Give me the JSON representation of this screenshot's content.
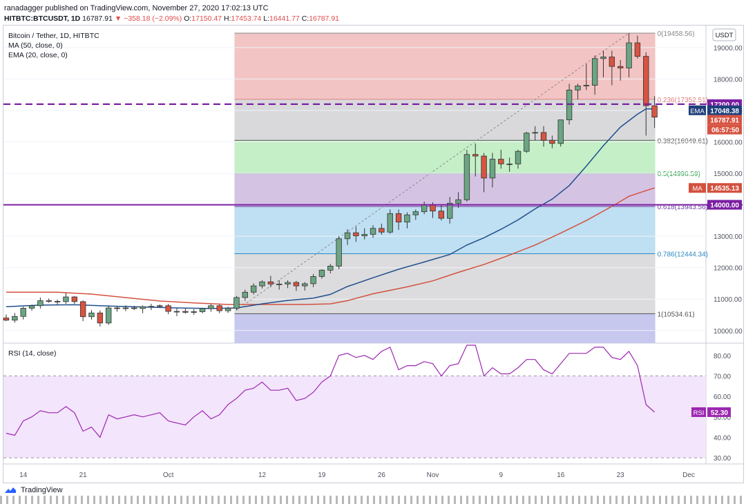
{
  "header": {
    "publish_line": "ranadagger published on TradingView.com, November 27, 2020 17:02:13 UTC",
    "symbol": "HITBTC:BTCUSDT, 1D",
    "price": "16787.91",
    "change": "▼ −358.18 (−2.09%)",
    "o_label": "O:",
    "o_value": "17150.47",
    "h_label": "H:",
    "h_value": "17453.74",
    "l_label": "L:",
    "l_value": "16441.77",
    "c_label": "C:",
    "c_value": "16787.91"
  },
  "legend": {
    "title": "Bitcoin / Tether, 1D, HITBTC",
    "ma": "MA (50, close, 0)",
    "ema": "EMA (20, close, 0)",
    "rsi": "RSI (14, close)"
  },
  "currency_button": "USDT",
  "footer_brand": "TradingView",
  "colors": {
    "up": "#6ba583",
    "down": "#d75442",
    "ema": "#1f4e8c",
    "ma": "#d3513f",
    "rsi": "#9c27b0",
    "level": "#7b1fa2",
    "accent_label": "#1e3f7a"
  },
  "chart_data": {
    "type": "candlestick",
    "title": "Bitcoin / Tether, 1D, HITBTC",
    "ylim": [
      9600,
      19700
    ],
    "y_ticks": [
      10000,
      11000,
      12000,
      13000,
      14000,
      15000,
      16000,
      17000,
      18000,
      19000
    ],
    "y_tick_labels": [
      "10000.00",
      "11000.00",
      "12000.00",
      "13000.00",
      "14000.00",
      "15000.00",
      "16000.00",
      "17000.00",
      "18000.00",
      "19000.00"
    ],
    "x_ticks": [
      {
        "label": "14",
        "index": 2
      },
      {
        "label": "21",
        "index": 9
      },
      {
        "label": "Oct",
        "index": 19
      },
      {
        "label": "12",
        "index": 30
      },
      {
        "label": "19",
        "index": 37
      },
      {
        "label": "26",
        "index": 44
      },
      {
        "label": "Nov",
        "index": 50
      },
      {
        "label": "9",
        "index": 58
      },
      {
        "label": "16",
        "index": 65
      },
      {
        "label": "23",
        "index": 72
      },
      {
        "label": "Dec",
        "index": 80
      }
    ],
    "candles": [
      [
        10400,
        10510,
        10300,
        10330
      ],
      [
        10330,
        10560,
        10250,
        10450
      ],
      [
        10450,
        10760,
        10350,
        10710
      ],
      [
        10710,
        10820,
        10630,
        10790
      ],
      [
        10790,
        11050,
        10700,
        10950
      ],
      [
        10950,
        11020,
        10880,
        10930
      ],
      [
        10930,
        10980,
        10820,
        10920
      ],
      [
        10920,
        11200,
        10850,
        11070
      ],
      [
        11070,
        11100,
        10850,
        10920
      ],
      [
        10920,
        10960,
        10300,
        10440
      ],
      [
        10440,
        10650,
        10350,
        10560
      ],
      [
        10560,
        10640,
        10130,
        10240
      ],
      [
        10240,
        10800,
        10180,
        10720
      ],
      [
        10720,
        10780,
        10600,
        10700
      ],
      [
        10700,
        10800,
        10620,
        10720
      ],
      [
        10720,
        10780,
        10650,
        10700
      ],
      [
        10700,
        10800,
        10550,
        10760
      ],
      [
        10760,
        10850,
        10650,
        10770
      ],
      [
        10770,
        10830,
        10720,
        10790
      ],
      [
        10790,
        10850,
        10520,
        10610
      ],
      [
        10610,
        10710,
        10460,
        10610
      ],
      [
        10610,
        10700,
        10540,
        10580
      ],
      [
        10580,
        10680,
        10500,
        10600
      ],
      [
        10600,
        10720,
        10550,
        10700
      ],
      [
        10700,
        10840,
        10600,
        10790
      ],
      [
        10790,
        10830,
        10550,
        10630
      ],
      [
        10630,
        10760,
        10560,
        10710
      ],
      [
        10710,
        11100,
        10650,
        11050
      ],
      [
        11050,
        11300,
        10950,
        11220
      ],
      [
        11220,
        11500,
        11150,
        11420
      ],
      [
        11420,
        11600,
        11340,
        11550
      ],
      [
        11550,
        11740,
        11380,
        11480
      ],
      [
        11480,
        11600,
        11300,
        11480
      ],
      [
        11480,
        11600,
        11350,
        11530
      ],
      [
        11530,
        11580,
        11260,
        11420
      ],
      [
        11420,
        11540,
        11270,
        11490
      ],
      [
        11490,
        11800,
        11380,
        11720
      ],
      [
        11720,
        11950,
        11650,
        11920
      ],
      [
        11920,
        12120,
        11820,
        12050
      ],
      [
        12050,
        13000,
        11950,
        12920
      ],
      [
        12920,
        13220,
        12720,
        13110
      ],
      [
        13110,
        13300,
        12820,
        13010
      ],
      [
        13010,
        13250,
        12900,
        13060
      ],
      [
        13060,
        13350,
        12950,
        13250
      ],
      [
        13250,
        13400,
        13050,
        13130
      ],
      [
        13130,
        13850,
        13080,
        13720
      ],
      [
        13720,
        13850,
        13200,
        13450
      ],
      [
        13450,
        13760,
        13250,
        13680
      ],
      [
        13680,
        13850,
        13520,
        13780
      ],
      [
        13780,
        14100,
        13700,
        14000
      ],
      [
        14000,
        14080,
        13580,
        13800
      ],
      [
        13800,
        14000,
        13500,
        13570
      ],
      [
        13570,
        14250,
        13400,
        14050
      ],
      [
        14050,
        14400,
        13900,
        14160
      ],
      [
        14160,
        15750,
        14100,
        15600
      ],
      [
        15600,
        15950,
        14900,
        15550
      ],
      [
        15550,
        15650,
        14400,
        14850
      ],
      [
        14850,
        15650,
        14550,
        15450
      ],
      [
        15450,
        15750,
        15150,
        15300
      ],
      [
        15300,
        15500,
        15050,
        15300
      ],
      [
        15300,
        15750,
        15150,
        15700
      ],
      [
        15700,
        16320,
        15650,
        16280
      ],
      [
        16280,
        16500,
        16050,
        16300
      ],
      [
        16300,
        16500,
        15850,
        16050
      ],
      [
        16050,
        16200,
        15800,
        15950
      ],
      [
        15950,
        16650,
        15850,
        16700
      ],
      [
        16700,
        17850,
        16550,
        17650
      ],
      [
        17650,
        17850,
        17350,
        17780
      ],
      [
        17780,
        18470,
        17650,
        17800
      ],
      [
        17800,
        18750,
        17500,
        18650
      ],
      [
        18650,
        18900,
        18050,
        18700
      ],
      [
        18700,
        18900,
        17800,
        18400
      ],
      [
        18400,
        18600,
        17950,
        18350
      ],
      [
        18350,
        19459,
        18050,
        19150
      ],
      [
        19150,
        19380,
        18650,
        18720
      ],
      [
        18720,
        18850,
        16200,
        17150
      ],
      [
        17150,
        17453.74,
        16441.77,
        16787.91
      ]
    ],
    "ema20": [
      [
        0,
        10760
      ],
      [
        4,
        10810
      ],
      [
        8,
        10820
      ],
      [
        12,
        10780
      ],
      [
        16,
        10750
      ],
      [
        20,
        10720
      ],
      [
        24,
        10700
      ],
      [
        27,
        10720
      ],
      [
        30,
        10850
      ],
      [
        33,
        10960
      ],
      [
        36,
        11030
      ],
      [
        38,
        11150
      ],
      [
        40,
        11400
      ],
      [
        43,
        11680
      ],
      [
        46,
        11950
      ],
      [
        49,
        12180
      ],
      [
        52,
        12420
      ],
      [
        54,
        12720
      ],
      [
        56,
        12950
      ],
      [
        58,
        13220
      ],
      [
        60,
        13520
      ],
      [
        62,
        13870
      ],
      [
        64,
        14180
      ],
      [
        66,
        14610
      ],
      [
        68,
        15230
      ],
      [
        70,
        15880
      ],
      [
        72,
        16470
      ],
      [
        74,
        16880
      ],
      [
        75,
        17050
      ],
      [
        76,
        17048.38
      ]
    ],
    "ma50": [
      [
        0,
        11220
      ],
      [
        6,
        11220
      ],
      [
        10,
        11160
      ],
      [
        14,
        11050
      ],
      [
        18,
        10940
      ],
      [
        22,
        10880
      ],
      [
        26,
        10830
      ],
      [
        29,
        10830
      ],
      [
        32,
        10830
      ],
      [
        35,
        10830
      ],
      [
        38,
        10850
      ],
      [
        40,
        10950
      ],
      [
        43,
        11170
      ],
      [
        47,
        11390
      ],
      [
        50,
        11580
      ],
      [
        53,
        11850
      ],
      [
        56,
        12100
      ],
      [
        59,
        12400
      ],
      [
        62,
        12720
      ],
      [
        65,
        13100
      ],
      [
        68,
        13500
      ],
      [
        71,
        13950
      ],
      [
        73,
        14270
      ],
      [
        75,
        14450
      ],
      [
        76,
        14535.13
      ]
    ],
    "levels": [
      {
        "value": 17200,
        "label": "17200.00"
      },
      {
        "value": 14000,
        "label": "14000.00"
      }
    ],
    "fib": {
      "start_index": 27,
      "end_index": 76,
      "levels": [
        {
          "ratio": "0",
          "value": 19458.56,
          "label": "0(19458.56)"
        },
        {
          "ratio": "0.236",
          "value": 17352.51,
          "label": "0.236(17352.51)"
        },
        {
          "ratio": "0.382",
          "value": 16049.61,
          "label": "0.382(16049.61)"
        },
        {
          "ratio": "0.5",
          "value": 14996.59,
          "label": "0.5(14996.59)"
        },
        {
          "ratio": "0.618",
          "value": 13943.56,
          "label": "0.618(13943.56)"
        },
        {
          "ratio": "0.786",
          "value": 12444.34,
          "label": "0.786(12444.34)"
        },
        {
          "ratio": "1",
          "value": 10534.61,
          "label": "1(10534.61)"
        }
      ]
    },
    "price_labels": {
      "level_hi": "17200.00",
      "ema_tag": "EMA",
      "ema_value": "17048.38",
      "close": "16787.91",
      "countdown": "06:57:50",
      "ma_tag": "MA",
      "ma_value": "14535.13",
      "level_lo": "14000.00"
    },
    "rsi": {
      "ylim": [
        27,
        86
      ],
      "ticks": [
        30,
        40,
        50,
        60,
        70,
        80
      ],
      "tick_labels": [
        "30.00",
        "40.00",
        "50.00",
        "60.00",
        "70.00",
        "80.00"
      ],
      "band": [
        30,
        70
      ],
      "tag": "RSI",
      "value_label": "52.30",
      "values": [
        42,
        41,
        48,
        50,
        53,
        52,
        52,
        55,
        52,
        43,
        45,
        40,
        51,
        49,
        50,
        51,
        50,
        51,
        52,
        48,
        47,
        46,
        50,
        53,
        49,
        51,
        56,
        59,
        63,
        64,
        67,
        63,
        63,
        64,
        58,
        59,
        62,
        67,
        70,
        80,
        81,
        79,
        80,
        78,
        82,
        84,
        73,
        75,
        75,
        77,
        76,
        70,
        75,
        76,
        85,
        85,
        70,
        74,
        71,
        71,
        74,
        78,
        78,
        73,
        71,
        76,
        81,
        81,
        81,
        84,
        84,
        79,
        78,
        82,
        75,
        56,
        52.3
      ]
    }
  }
}
